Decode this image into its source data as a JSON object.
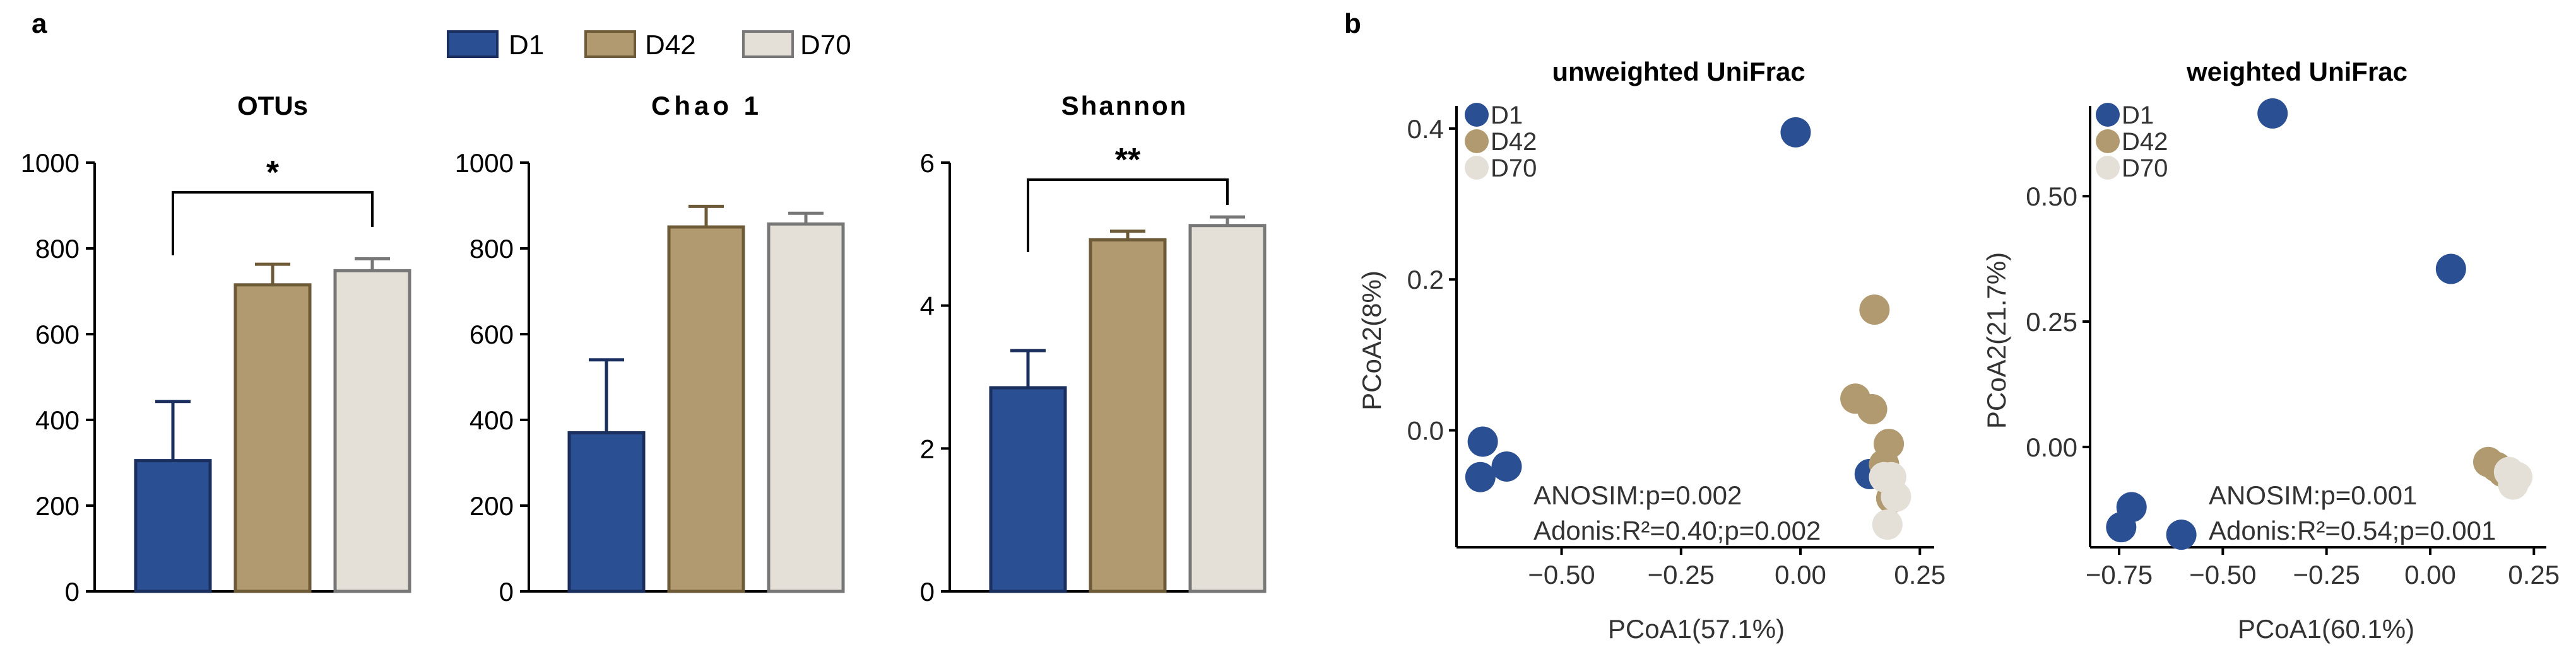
{
  "panel_labels": {
    "a": "a",
    "b": "b"
  },
  "legend": [
    {
      "label": "D1",
      "color": "#2b4f93",
      "edge": "#1a2f5e"
    },
    {
      "label": "D42",
      "color": "#b19a6f",
      "edge": "#6d5a37"
    },
    {
      "label": "D70",
      "color": "#e4e0d7",
      "edge": "#777777"
    }
  ],
  "chart_data": [
    {
      "type": "bar",
      "title": "OTUs",
      "categories": [
        "D1",
        "D42",
        "D70"
      ],
      "values": [
        305,
        715,
        748
      ],
      "errors": [
        138,
        48,
        28
      ],
      "ylim": [
        0,
        1000
      ],
      "yticks": [
        0,
        200,
        400,
        600,
        800,
        1000
      ],
      "yticklabels": [
        "0",
        "200",
        "400",
        "600",
        "800",
        "1000"
      ],
      "significance": {
        "from": 0,
        "to": 2,
        "label": "*"
      }
    },
    {
      "type": "bar",
      "title": "Chao 1",
      "categories": [
        "D1",
        "D42",
        "D70"
      ],
      "values": [
        370,
        850,
        857
      ],
      "errors": [
        170,
        48,
        25
      ],
      "ylim": [
        0,
        1000
      ],
      "yticks": [
        0,
        200,
        400,
        600,
        800,
        1000
      ],
      "yticklabels": [
        "0",
        "200",
        "400",
        "600",
        "800",
        "1000"
      ]
    },
    {
      "type": "bar",
      "title": "Shannon",
      "categories": [
        "D1",
        "D42",
        "D70"
      ],
      "values": [
        2.85,
        4.92,
        5.12
      ],
      "errors": [
        0.52,
        0.12,
        0.12
      ],
      "ylim": [
        0,
        6
      ],
      "yticks": [
        0,
        2,
        4,
        6
      ],
      "yticklabels": [
        "0",
        "2",
        "4",
        "6"
      ],
      "significance": {
        "from": 0,
        "to": 2,
        "label": "**"
      }
    },
    {
      "type": "scatter",
      "title": "unweighted UniFrac",
      "xlabel": "PCoA1(57.1%)",
      "ylabel": "PCoA2(8%)",
      "xlim": [
        -0.72,
        0.28
      ],
      "ylim": [
        -0.155,
        0.43
      ],
      "xticks": [
        -0.5,
        -0.25,
        0.0,
        0.25
      ],
      "xticklabels": [
        "−0.50",
        "−0.25",
        "0.00",
        "0.25"
      ],
      "yticks": [
        0.0,
        0.2,
        0.4
      ],
      "yticklabels": [
        "0.0",
        "0.2",
        "0.4"
      ],
      "annotations": [
        "ANOSIM:p=0.002",
        "Adonis:R²=0.40;p=0.002"
      ],
      "series": [
        {
          "name": "D1",
          "points": [
            [
              -0.01,
              0.395
            ],
            [
              -0.665,
              -0.015
            ],
            [
              -0.615,
              -0.048
            ],
            [
              -0.67,
              -0.062
            ],
            [
              0.145,
              -0.058
            ]
          ]
        },
        {
          "name": "D42",
          "points": [
            [
              0.155,
              0.16
            ],
            [
              0.115,
              0.042
            ],
            [
              0.15,
              0.028
            ],
            [
              0.185,
              -0.018
            ],
            [
              0.175,
              -0.045
            ],
            [
              0.19,
              -0.09
            ]
          ]
        },
        {
          "name": "D70",
          "points": [
            [
              0.19,
              -0.062
            ],
            [
              0.175,
              -0.062
            ],
            [
              0.2,
              -0.088
            ],
            [
              0.182,
              -0.125
            ]
          ]
        }
      ]
    },
    {
      "type": "scatter",
      "title": "weighted UniFrac",
      "xlabel": "PCoA1(60.1%)",
      "ylabel": "PCoA2(21.7%)",
      "xlim": [
        -0.82,
        0.28
      ],
      "ylim": [
        -0.2,
        0.68
      ],
      "xticks": [
        -0.75,
        -0.5,
        -0.25,
        0.0,
        0.25
      ],
      "xticklabels": [
        "−0.75",
        "−0.50",
        "−0.25",
        "0.00",
        "0.25"
      ],
      "yticks": [
        0.0,
        0.25,
        0.5
      ],
      "yticklabels": [
        "0.00",
        "0.25",
        "0.50"
      ],
      "annotations": [
        "ANOSIM:p=0.001",
        "Adonis:R²=0.54;p=0.001"
      ],
      "series": [
        {
          "name": "D1",
          "points": [
            [
              -0.38,
              0.665
            ],
            [
              0.05,
              0.355
            ],
            [
              -0.72,
              -0.12
            ],
            [
              -0.745,
              -0.16
            ],
            [
              -0.6,
              -0.175
            ]
          ]
        },
        {
          "name": "D42",
          "points": [
            [
              0.14,
              -0.03
            ],
            [
              0.16,
              -0.04
            ],
            [
              0.175,
              -0.05
            ]
          ]
        },
        {
          "name": "D70",
          "points": [
            [
              0.19,
              -0.05
            ],
            [
              0.21,
              -0.06
            ],
            [
              0.2,
              -0.075
            ]
          ]
        }
      ]
    }
  ]
}
